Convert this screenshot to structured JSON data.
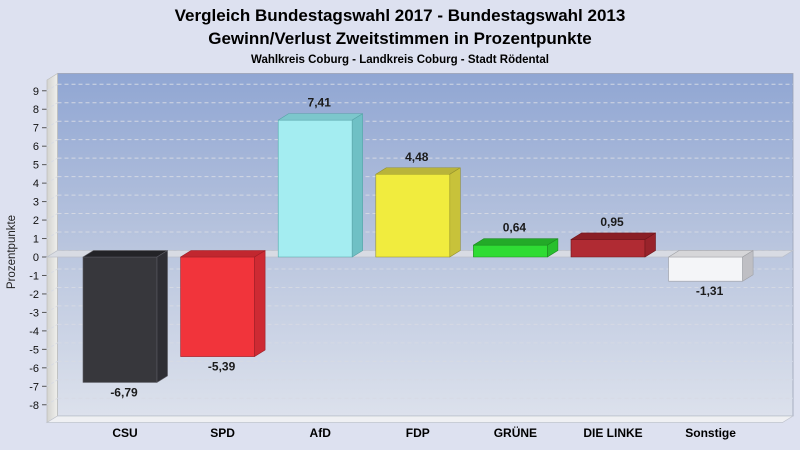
{
  "chart_data": {
    "type": "bar",
    "style": "3d-columns",
    "title1": "Vergleich Bundestagswahl 2017 - Bundestagswahl 2013",
    "title2": "Gewinn/Verlust Zweitstimmen in Prozentpunkte",
    "subtitle": "Wahlkreis Coburg - Landkreis Coburg - Stadt Rödental",
    "ylabel": "Prozentpunkte",
    "xlabel": "",
    "ylim": [
      -8,
      9
    ],
    "ytick_step": 1,
    "ytick_labels": [
      "9",
      "8",
      "7",
      "6",
      "5",
      "4",
      "3",
      "2",
      "1",
      "0",
      "-1",
      "-2",
      "-3",
      "-4",
      "-5",
      "-6",
      "-7",
      "-8"
    ],
    "grid": "dashed-horizontal",
    "legend": "none",
    "categories": [
      "CSU",
      "SPD",
      "AfD",
      "FDP",
      "GRÜNE",
      "DIE LINKE",
      "Sonstige"
    ],
    "values": [
      -6.79,
      -5.39,
      7.41,
      4.48,
      0.64,
      0.95,
      -1.31
    ],
    "value_labels": [
      "-6,79",
      "-5,39",
      "7,41",
      "4,48",
      "0,64",
      "0,95",
      "-1,31"
    ],
    "bar_colors": [
      {
        "front": "#37373c",
        "top": "#232327",
        "side": "#2e2e34",
        "edge": "#5a5a62"
      },
      {
        "front": "#f1343b",
        "top": "#c1272f",
        "side": "#ce2a33",
        "edge": "#9c1f26"
      },
      {
        "front": "#a4edf1",
        "top": "#7cc7cc",
        "side": "#6fc0c5",
        "edge": "#58a3a8"
      },
      {
        "front": "#f1ec3e",
        "top": "#b9b43a",
        "side": "#c8c23a",
        "edge": "#94902c"
      },
      {
        "front": "#2fdc34",
        "top": "#23aa28",
        "side": "#28bf2d",
        "edge": "#1c8a20"
      },
      {
        "front": "#b02b33",
        "top": "#8a1f26",
        "side": "#98232b",
        "edge": "#6e161c"
      },
      {
        "front": "#f4f5f8",
        "top": "#d6d6d9",
        "side": "#bfbfc4",
        "edge": "#9fa0a5"
      }
    ],
    "colors": {
      "background": "#dde1f0",
      "wall_top": "#90a6d3",
      "wall_mid": "#b9c5de",
      "wall_bottom": "#dce1ec",
      "side_wall": "#e0e0dd",
      "floor": "#eff0f3",
      "grid": "#d6dae4",
      "zero_plane": "#dadde4",
      "tick_text": "#111111",
      "value_text": "#1b1b1b"
    }
  }
}
